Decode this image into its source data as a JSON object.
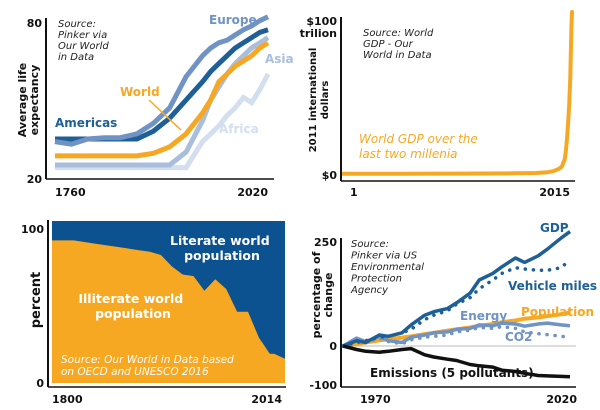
{
  "colors": {
    "dark_blue": "#1d5f96",
    "mid_blue": "#6f93c4",
    "light_blue": "#a9bddd",
    "pale_blue": "#d3deee",
    "orange": "#f7a823",
    "black": "#111111",
    "area_blue": "#0c5190",
    "grid": "#cccccc"
  },
  "chart_data": [
    {
      "id": "life-expectancy",
      "type": "line",
      "title": "",
      "source": [
        "Source:",
        "Pinker via",
        "Our World",
        "in Data"
      ],
      "ylabel": [
        "Average life",
        "expectancy"
      ],
      "xlabel": "",
      "ylim": [
        20,
        80
      ],
      "xlim": [
        1760,
        2020
      ],
      "x_ticks": [
        "1760",
        "2020"
      ],
      "y_ticks": [
        "80",
        "20"
      ],
      "grid": false,
      "x": [
        1760,
        1780,
        1800,
        1820,
        1840,
        1860,
        1880,
        1900,
        1920,
        1940,
        1950,
        1960,
        1970,
        1980,
        1990,
        2000,
        2010,
        2020
      ],
      "series": [
        {
          "name": "Europe",
          "color_key": "mid_blue",
          "label_color_key": "mid_blue",
          "values": [
            34,
            33,
            35,
            35.5,
            35.5,
            37,
            41,
            47,
            59,
            67,
            70,
            72,
            73,
            75,
            77,
            78.5,
            80.5,
            82
          ]
        },
        {
          "name": "Americas",
          "color_key": "dark_blue",
          "label_color_key": "dark_blue",
          "values": [
            35,
            35,
            35,
            35,
            35,
            35,
            38,
            43,
            50,
            57,
            61,
            64,
            67,
            70,
            72,
            74,
            76,
            77
          ]
        },
        {
          "name": "Asia",
          "color_key": "light_blue",
          "label_color_key": "light_blue",
          "values": [
            25,
            25,
            25,
            25,
            25,
            25,
            25,
            25,
            30,
            42,
            50,
            55,
            60,
            64,
            67,
            70,
            72,
            74
          ]
        },
        {
          "name": "World",
          "color_key": "orange",
          "label_color_key": "orange",
          "values": [
            28.5,
            28.5,
            28.5,
            28.5,
            28.5,
            28.5,
            29.5,
            32,
            37,
            45,
            50,
            57,
            60,
            63,
            65,
            67,
            70,
            72
          ]
        },
        {
          "name": "Africa",
          "color_key": "pale_blue",
          "label_color_key": "pale_blue",
          "values": [
            24,
            24,
            24,
            24,
            24,
            24,
            24,
            24,
            24,
            34,
            37,
            40,
            44,
            47,
            51,
            49,
            54,
            60
          ]
        }
      ],
      "annotations": [
        {
          "text": "World",
          "pointer": true
        }
      ]
    },
    {
      "id": "world-gdp",
      "type": "line",
      "title": "World GDP over the last two millenia",
      "title_lines": [
        "World GDP over the",
        "last two millenia"
      ],
      "source": [
        "Source: World",
        "GDP - Our",
        "World in Data"
      ],
      "ylabel": [
        "2011 international",
        "dollars"
      ],
      "xlabel": "",
      "ylim": [
        0,
        100
      ],
      "y_unit": "trillion international dollars (2011)",
      "xlim": [
        1,
        2015
      ],
      "x_ticks": [
        "1",
        "2015"
      ],
      "y_ticks": [
        "$100",
        "trilion",
        "$0"
      ],
      "grid": false,
      "x": [
        1,
        500,
        1000,
        1500,
        1700,
        1800,
        1850,
        1900,
        1925,
        1950,
        1960,
        1970,
        1980,
        1990,
        2000,
        2010,
        2015
      ],
      "series": [
        {
          "name": "World GDP",
          "color_key": "orange",
          "values": [
            0.2,
            0.2,
            0.25,
            0.45,
            0.65,
            1.2,
            1.8,
            3.4,
            4.8,
            9.2,
            14,
            22,
            32,
            45,
            63,
            95,
            108
          ]
        }
      ]
    },
    {
      "id": "literacy",
      "type": "area",
      "title": "",
      "source": [
        "Source: Our World in Data based",
        "on OECD and UNESCO 2016"
      ],
      "ylabel": [
        "percent"
      ],
      "xlabel": "",
      "ylim": [
        0,
        100
      ],
      "xlim": [
        1800,
        2014
      ],
      "x_ticks": [
        "1800",
        "2014"
      ],
      "y_ticks": [
        "100",
        "0"
      ],
      "grid": false,
      "x": [
        1800,
        1820,
        1840,
        1860,
        1880,
        1890,
        1900,
        1910,
        1920,
        1930,
        1940,
        1950,
        1960,
        1970,
        1980,
        1990,
        2000,
        2004,
        2014
      ],
      "series": [
        {
          "name": "Illiterate world population",
          "color_key": "orange",
          "values": [
            88,
            88,
            86,
            84,
            82,
            81,
            79,
            72,
            67,
            66,
            57,
            64,
            58,
            44,
            44,
            28,
            18,
            18,
            15
          ]
        },
        {
          "name": "Literate world population",
          "color_key": "area_blue",
          "values": [
            12,
            12,
            14,
            16,
            18,
            19,
            21,
            28,
            33,
            34,
            43,
            36,
            42,
            56,
            56,
            72,
            82,
            82,
            85
          ]
        }
      ],
      "labels": {
        "literate": [
          "Literate world",
          "population"
        ],
        "illiterate": [
          "Illiterate world",
          "population"
        ]
      }
    },
    {
      "id": "us-environment",
      "type": "line",
      "title": "",
      "source": [
        "Source:",
        "Pinker via US",
        "Environmental",
        "Protection",
        "Agency"
      ],
      "ylabel": [
        "percentage of",
        "change"
      ],
      "xlabel": "",
      "ylim": [
        -100,
        250
      ],
      "xlim": [
        1970,
        2020
      ],
      "x_ticks": [
        "1970",
        "2020"
      ],
      "y_ticks": [
        "250",
        "0",
        "-100"
      ],
      "zero_line": true,
      "grid": false,
      "x": [
        1970,
        1973,
        1975,
        1978,
        1980,
        1983,
        1985,
        1988,
        1990,
        1993,
        1995,
        1998,
        2000,
        2003,
        2005,
        2008,
        2010,
        2013,
        2015,
        2018,
        2020
      ],
      "series": [
        {
          "name": "GDP",
          "color_key": "dark_blue",
          "style": "solid",
          "values": [
            0,
            12,
            8,
            25,
            22,
            30,
            48,
            70,
            78,
            85,
            98,
            120,
            150,
            165,
            180,
            200,
            190,
            205,
            220,
            245,
            260
          ]
        },
        {
          "name": "Vehicle miles",
          "color_key": "dark_blue",
          "style": "dotted",
          "values": [
            0,
            8,
            12,
            20,
            22,
            30,
            38,
            60,
            70,
            80,
            95,
            110,
            130,
            150,
            165,
            178,
            175,
            172,
            172,
            178,
            195
          ]
        },
        {
          "name": "Population",
          "color_key": "orange",
          "style": "solid",
          "values": [
            0,
            4,
            8,
            13,
            15,
            19,
            22,
            27,
            30,
            35,
            38,
            42,
            46,
            50,
            54,
            58,
            62,
            65,
            68,
            72,
            76
          ]
        },
        {
          "name": "Energy",
          "color_key": "mid_blue",
          "style": "solid",
          "values": [
            0,
            18,
            10,
            22,
            12,
            8,
            20,
            25,
            30,
            32,
            38,
            40,
            48,
            46,
            52,
            50,
            45,
            50,
            52,
            48,
            46
          ]
        },
        {
          "name": "CO2",
          "color_key": "mid_blue",
          "style": "dotted",
          "values": [
            0,
            14,
            8,
            18,
            10,
            5,
            14,
            20,
            22,
            25,
            32,
            36,
            42,
            40,
            44,
            40,
            32,
            28,
            26,
            22,
            20
          ]
        },
        {
          "name": "Emissions (5 pollutants)",
          "color_key": "black",
          "style": "solid",
          "values": [
            0,
            -8,
            -12,
            -14,
            -12,
            -8,
            -6,
            -20,
            -25,
            -30,
            -33,
            -42,
            -45,
            -48,
            -55,
            -58,
            -62,
            -67,
            -68,
            -69,
            -70
          ]
        }
      ]
    }
  ]
}
